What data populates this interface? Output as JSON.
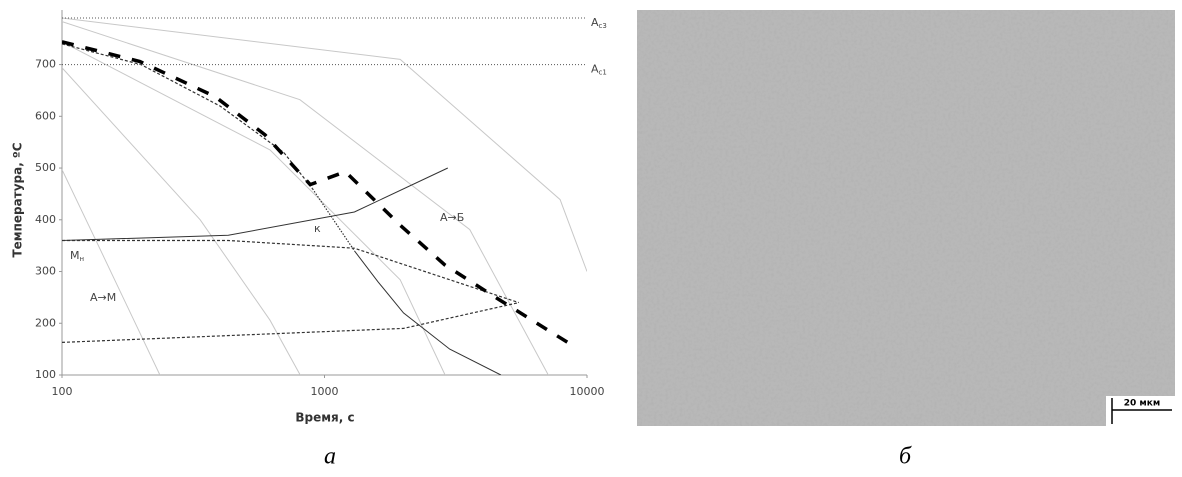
{
  "chart_data": {
    "type": "line",
    "xscale": "log",
    "grid": false,
    "xlabel": "Время, с",
    "ylabel": "Температура, ºС",
    "xlim": [
      100,
      10000
    ],
    "xticks": [
      100,
      1000,
      10000
    ],
    "ylim": [
      100,
      790
    ],
    "yticks": [
      100,
      200,
      300,
      400,
      500,
      600,
      700
    ],
    "reference_lines": [
      {
        "y": 790,
        "label": "A",
        "subscript": "c3"
      },
      {
        "y": 700,
        "label": "A",
        "subscript": "c1"
      }
    ],
    "annotations": [
      {
        "text": "M",
        "subscript": "н"
      },
      {
        "text": "A→M"
      },
      {
        "text": "A→Б"
      },
      {
        "text": "к"
      }
    ],
    "series": [
      {
        "color": "#c8c8c8",
        "style": "solid",
        "x": [
          100,
          140,
          236
        ],
        "values": [
          497,
          342,
          100
        ]
      },
      {
        "color": "#c8c8c8",
        "style": "solid",
        "x": [
          100,
          336,
          620,
          808
        ],
        "values": [
          694,
          400,
          206,
          100
        ]
      },
      {
        "color": "#c8c8c8",
        "style": "solid",
        "x": [
          100,
          620,
          1942,
          2880
        ],
        "values": [
          744,
          535,
          284,
          100
        ]
      },
      {
        "color": "#c8c8c8",
        "style": "solid",
        "x": [
          100,
          806,
          3576,
          7124
        ],
        "values": [
          783,
          632,
          381,
          100
        ]
      },
      {
        "color": "#c8c8c8",
        "style": "solid",
        "x": [
          100,
          1942,
          7900,
          10000
        ],
        "values": [
          790,
          710,
          439,
          300
        ]
      },
      {
        "color": "#333333",
        "style": "solid",
        "x": [
          100,
          430,
          1300,
          2950
        ],
        "values": [
          360,
          370,
          415,
          500
        ]
      },
      {
        "color": "#333333",
        "style": "dashed",
        "x": [
          100,
          200,
          400,
          700,
          900
        ],
        "values": [
          740,
          700,
          620,
          530,
          460
        ]
      },
      {
        "color": "#333333",
        "style": "dotted",
        "x": [
          900,
          1300
        ],
        "values": [
          460,
          340
        ]
      },
      {
        "color": "#333333",
        "style": "solid",
        "x": [
          1300,
          1600,
          2000,
          3000,
          4700
        ],
        "values": [
          340,
          280,
          220,
          150,
          100
        ]
      },
      {
        "color": "#333333",
        "style": "dashed",
        "x": [
          100,
          430,
          1300,
          5500
        ],
        "values": [
          360,
          360,
          345,
          240
        ]
      },
      {
        "color": "#333333",
        "style": "dashed",
        "x": [
          100,
          2000,
          5500
        ],
        "values": [
          163,
          190,
          240
        ]
      },
      {
        "color": "#000000",
        "style": "thick-dashed",
        "x": [
          100,
          198,
          383,
          594,
          882,
          1200,
          1939,
          2870,
          4650,
          8750
        ],
        "values": [
          744,
          706,
          638,
          564,
          468,
          493,
          390,
          313,
          245,
          158
        ]
      }
    ]
  },
  "panel_labels": [
    "а",
    "б"
  ],
  "scale_bar": "20 мкм"
}
